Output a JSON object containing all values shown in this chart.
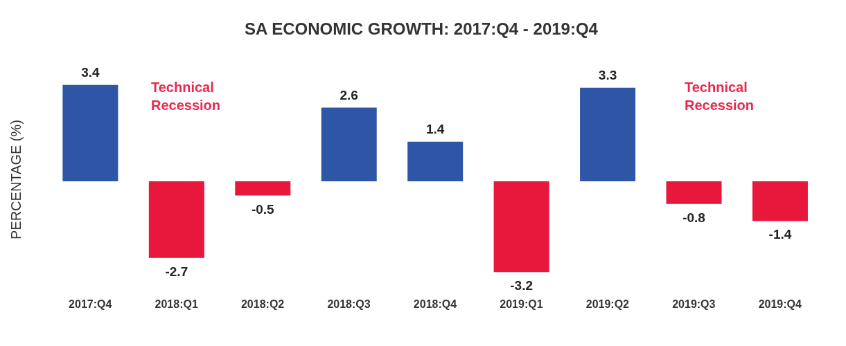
{
  "chart_data": {
    "type": "bar",
    "title": "SA ECONOMIC GROWTH: 2017:Q4 - 2019:Q4",
    "ylabel": "PERCENTAGE (%)",
    "categories": [
      "2017:Q4",
      "2018:Q1",
      "2018:Q2",
      "2018:Q3",
      "2018:Q4",
      "2019:Q1",
      "2019:Q2",
      "2019:Q3",
      "2019:Q4"
    ],
    "values": [
      3.4,
      -2.7,
      -0.5,
      2.6,
      1.4,
      -3.2,
      3.3,
      -0.8,
      -1.4
    ],
    "colors": [
      "#2f55a6",
      "#e8173c",
      "#e8173c",
      "#2f55a6",
      "#2f55a6",
      "#e8173c",
      "#2f55a6",
      "#e8173c",
      "#e8173c"
    ],
    "data_labels": true,
    "tick_labels": "x",
    "annotations": [
      "Technical Recession",
      "Technical Recession"
    ]
  }
}
